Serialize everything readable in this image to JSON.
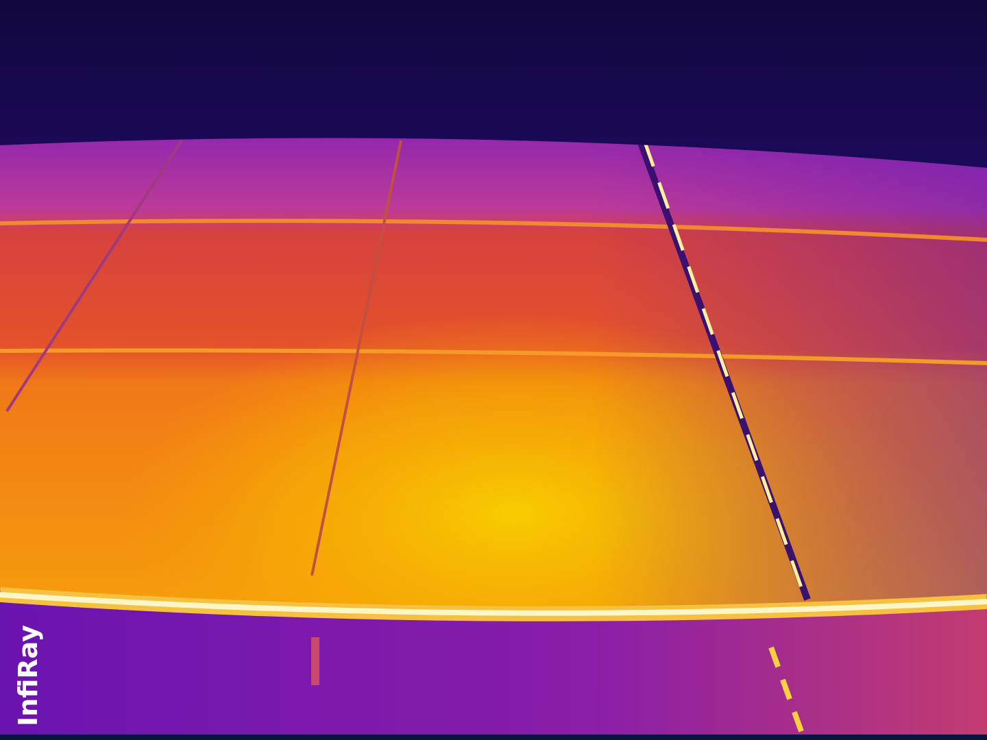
{
  "watermark": "InfiRay"
}
